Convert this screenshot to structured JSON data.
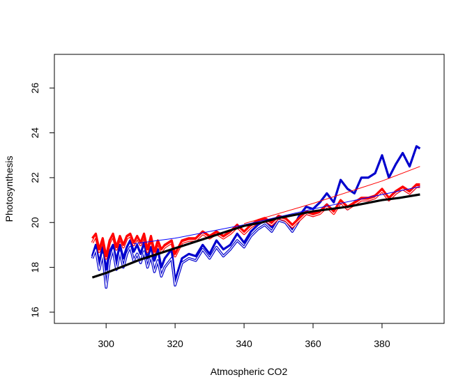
{
  "chart_data": {
    "type": "line",
    "title": "",
    "xlabel": "Atmospheric CO2",
    "ylabel": "Photosynthesis",
    "xlim": [
      285,
      398
    ],
    "ylim": [
      15.5,
      27.5
    ],
    "xticks": [
      300,
      320,
      340,
      360,
      380
    ],
    "yticks": [
      16,
      18,
      20,
      22,
      24,
      26
    ],
    "grid": false,
    "legend": "none",
    "colors": {
      "black": "#000000",
      "blue": "#0000cd",
      "red": "#ff0000",
      "white": "#ffffff"
    },
    "series": [
      {
        "style": "thick",
        "color": "#0000cd",
        "x": [
          296,
          297,
          298,
          299,
          300,
          301,
          302,
          303,
          304,
          305,
          306,
          307,
          308,
          309,
          310,
          311,
          312,
          313,
          314,
          315,
          316,
          317,
          318,
          319,
          320,
          322,
          324,
          326,
          328,
          330,
          332,
          334,
          336,
          338,
          340,
          342,
          344,
          346,
          348,
          350,
          352,
          354,
          356,
          358,
          360,
          362,
          364,
          366,
          368,
          370,
          372,
          374,
          376,
          378,
          380,
          382,
          384,
          386,
          388,
          390,
          391
        ],
        "y": [
          18.5,
          19.0,
          18.2,
          18.9,
          17.9,
          18.7,
          19.0,
          18.3,
          19.0,
          18.4,
          18.9,
          19.2,
          18.7,
          19.0,
          18.6,
          19.1,
          18.4,
          18.9,
          18.3,
          18.8,
          18.0,
          18.4,
          18.6,
          18.8,
          17.4,
          18.4,
          18.6,
          18.5,
          19.0,
          18.6,
          19.2,
          18.8,
          19.0,
          19.5,
          19.1,
          19.6,
          19.9,
          20.1,
          19.8,
          20.3,
          20.2,
          19.7,
          20.3,
          20.7,
          20.6,
          20.9,
          21.3,
          20.9,
          21.9,
          21.5,
          21.3,
          22.0,
          22.0,
          22.2,
          23.0,
          22.0,
          22.6,
          23.1,
          22.5,
          23.4,
          23.3
        ]
      },
      {
        "style": "double",
        "color": "#0000cd",
        "x": [
          296,
          297,
          298,
          299,
          300,
          301,
          302,
          303,
          304,
          305,
          306,
          307,
          308,
          309,
          310,
          311,
          312,
          313,
          314,
          315,
          316,
          317,
          318,
          319,
          320,
          322,
          324,
          326,
          328,
          330,
          332,
          334,
          336,
          338,
          340,
          342,
          344,
          346,
          348,
          350,
          352,
          354,
          356,
          358,
          360,
          362,
          364,
          366,
          368,
          370,
          372,
          374,
          376,
          378,
          380,
          382,
          384,
          386,
          388,
          390,
          391
        ],
        "y": [
          18.4,
          18.8,
          17.9,
          18.6,
          17.1,
          18.3,
          18.8,
          17.9,
          18.7,
          18.0,
          18.6,
          18.9,
          18.3,
          18.6,
          18.2,
          18.7,
          18.0,
          18.5,
          17.8,
          18.3,
          17.6,
          18.0,
          18.2,
          18.4,
          17.2,
          18.2,
          18.4,
          18.3,
          18.8,
          18.4,
          18.9,
          18.5,
          18.8,
          19.2,
          18.9,
          19.4,
          19.7,
          19.9,
          19.6,
          20.1,
          20.0,
          19.6,
          20.1,
          20.4,
          20.3,
          20.5,
          20.8,
          20.5,
          20.9,
          20.6,
          20.9,
          21.0,
          21.0,
          21.2,
          21.4,
          21.0,
          21.3,
          21.5,
          21.3,
          21.6,
          21.6
        ]
      },
      {
        "style": "double",
        "color": "#ff0000",
        "x": [
          296,
          297,
          298,
          299,
          300,
          301,
          302,
          303,
          304,
          305,
          306,
          307,
          308,
          309,
          310,
          311,
          312,
          313,
          314,
          315,
          316,
          317,
          318,
          319,
          320,
          322,
          324,
          326,
          328,
          330,
          332,
          334,
          336,
          338,
          340,
          342,
          344,
          346,
          348,
          350,
          352,
          354,
          356,
          358,
          360,
          362,
          364,
          366,
          368,
          370,
          372,
          374,
          376,
          378,
          380,
          382,
          384,
          386,
          388,
          390,
          391
        ],
        "y": [
          19.1,
          19.4,
          18.7,
          19.2,
          18.4,
          19.1,
          19.4,
          18.8,
          19.3,
          18.9,
          19.3,
          19.4,
          19.0,
          19.3,
          19.0,
          19.4,
          18.7,
          19.3,
          18.6,
          19.1,
          18.7,
          18.9,
          19.0,
          19.1,
          18.5,
          19.1,
          19.2,
          19.2,
          19.5,
          19.3,
          19.5,
          19.3,
          19.5,
          19.8,
          19.5,
          19.8,
          20.0,
          20.1,
          19.9,
          20.2,
          20.1,
          19.8,
          20.1,
          20.4,
          20.3,
          20.4,
          20.7,
          20.4,
          20.9,
          20.6,
          20.8,
          21.0,
          21.0,
          21.1,
          21.4,
          21.0,
          21.3,
          21.5,
          21.3,
          21.6,
          21.6
        ]
      },
      {
        "style": "thick",
        "color": "#ff0000",
        "x": [
          296,
          297,
          298,
          299,
          300,
          301,
          302,
          303,
          304,
          305,
          306,
          307,
          308,
          309,
          310,
          311,
          312,
          313,
          314,
          315,
          316,
          317,
          318,
          319,
          320,
          322,
          324,
          326,
          328,
          330,
          332,
          334,
          336,
          338,
          340,
          342,
          344,
          346,
          348,
          350,
          352,
          354,
          356,
          358,
          360,
          362,
          364,
          366,
          368,
          370,
          372,
          374,
          376,
          378,
          380,
          382,
          384,
          386,
          388,
          390,
          391
        ],
        "y": [
          19.3,
          19.5,
          18.8,
          19.3,
          18.5,
          19.2,
          19.5,
          18.9,
          19.4,
          19.0,
          19.4,
          19.5,
          19.1,
          19.4,
          19.1,
          19.5,
          18.8,
          19.4,
          18.7,
          19.2,
          18.8,
          19.0,
          19.1,
          19.2,
          18.6,
          19.2,
          19.3,
          19.3,
          19.6,
          19.4,
          19.6,
          19.4,
          19.6,
          19.9,
          19.6,
          19.9,
          20.1,
          20.2,
          20.0,
          20.3,
          20.2,
          19.9,
          20.2,
          20.5,
          20.4,
          20.5,
          20.8,
          20.5,
          21.0,
          20.7,
          20.9,
          21.1,
          21.1,
          21.2,
          21.5,
          21.1,
          21.4,
          21.6,
          21.4,
          21.7,
          21.7
        ]
      },
      {
        "style": "thin",
        "color": "#0000ff",
        "x": [
          308,
          320,
          340,
          360,
          391
        ],
        "y": [
          19.05,
          19.3,
          19.9,
          20.6,
          21.6
        ]
      },
      {
        "style": "thin",
        "color": "#ff0000",
        "x": [
          340,
          360,
          380,
          391
        ],
        "y": [
          19.95,
          20.85,
          21.85,
          22.5
        ]
      },
      {
        "style": "thick",
        "color": "#000000",
        "x": [
          296,
          300,
          305,
          310,
          315,
          320,
          325,
          330,
          335,
          340,
          345,
          350,
          355,
          360,
          365,
          370,
          375,
          380,
          385,
          391
        ],
        "y": [
          17.55,
          17.75,
          18.05,
          18.35,
          18.6,
          18.85,
          19.1,
          19.35,
          19.6,
          19.85,
          20.0,
          20.2,
          20.35,
          20.5,
          20.6,
          20.7,
          20.85,
          21.0,
          21.1,
          21.25
        ]
      }
    ]
  }
}
